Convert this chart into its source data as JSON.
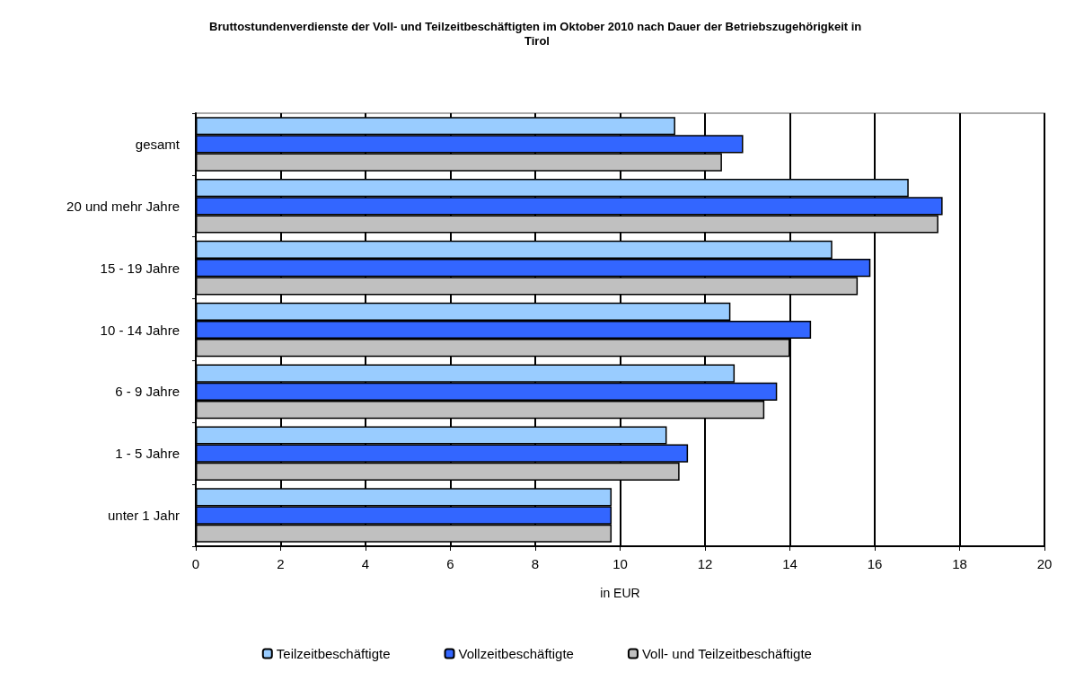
{
  "chart_data": {
    "type": "bar",
    "orientation": "horizontal",
    "title": "Bruttostundenverdienste der Voll- und Teilzeitbeschäftigten im Oktober 2010 nach Dauer der Betriebszugehörigkeit in Tirol",
    "xlabel": "in EUR",
    "categories": [
      "gesamt",
      "20 und mehr Jahre",
      "15 - 19 Jahre",
      "10 - 14 Jahre",
      "6 - 9 Jahre",
      "1 - 5 Jahre",
      "unter 1 Jahr"
    ],
    "series": [
      {
        "name": "Teilzeitbeschäftigte",
        "color": "#99ccff",
        "values": [
          11.3,
          16.8,
          15.0,
          12.6,
          12.7,
          11.1,
          9.8
        ]
      },
      {
        "name": "Vollzeitbeschäftigte",
        "color": "#3366ff",
        "values": [
          12.9,
          17.6,
          15.9,
          14.5,
          13.7,
          11.6,
          9.8
        ]
      },
      {
        "name": "Voll- und Teilzeitbeschäftigte",
        "color": "#c0c0c0",
        "values": [
          12.4,
          17.5,
          15.6,
          14.0,
          13.4,
          11.4,
          9.8
        ]
      }
    ],
    "xlim": [
      0,
      20
    ],
    "xticks": [
      0,
      2,
      4,
      6,
      8,
      10,
      12,
      14,
      16,
      18,
      20
    ],
    "grid": "x",
    "legend": "bottom"
  }
}
